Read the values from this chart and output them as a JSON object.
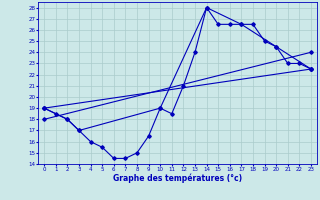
{
  "xlabel": "Graphe des températures (°c)",
  "bg_color": "#cce8e8",
  "grid_color": "#aacccc",
  "line_color": "#0000bb",
  "xlim": [
    -0.5,
    23.5
  ],
  "ylim": [
    14,
    28.5
  ],
  "xticks": [
    0,
    1,
    2,
    3,
    4,
    5,
    6,
    7,
    8,
    9,
    10,
    11,
    12,
    13,
    14,
    15,
    16,
    17,
    18,
    19,
    20,
    21,
    22,
    23
  ],
  "yticks": [
    14,
    15,
    16,
    17,
    18,
    19,
    20,
    21,
    22,
    23,
    24,
    25,
    26,
    27,
    28
  ],
  "series1_x": [
    0,
    1,
    2,
    3,
    4,
    5,
    6,
    7,
    8,
    9,
    10,
    11,
    12,
    13,
    14,
    15,
    16,
    17,
    18,
    19,
    20,
    21,
    22,
    23
  ],
  "series1_y": [
    19,
    18.5,
    18,
    17,
    16,
    15.5,
    14.5,
    14.5,
    15,
    16.5,
    19,
    18.5,
    21,
    24,
    28,
    26.5,
    26.5,
    26.5,
    26.5,
    25,
    24.5,
    23,
    23,
    22.5
  ],
  "series2_x": [
    0,
    2,
    3,
    10,
    14,
    17,
    20,
    23
  ],
  "series2_y": [
    19,
    18,
    17,
    19,
    28,
    26.5,
    24.5,
    22.5
  ],
  "series3_x": [
    0,
    23
  ],
  "series3_y": [
    19,
    22.5
  ],
  "series4_x": [
    0,
    23
  ],
  "series4_y": [
    18,
    24
  ],
  "marker": "D",
  "markersize": 1.8,
  "linewidth": 0.8,
  "tick_fontsize": 4.0,
  "xlabel_fontsize": 5.5
}
